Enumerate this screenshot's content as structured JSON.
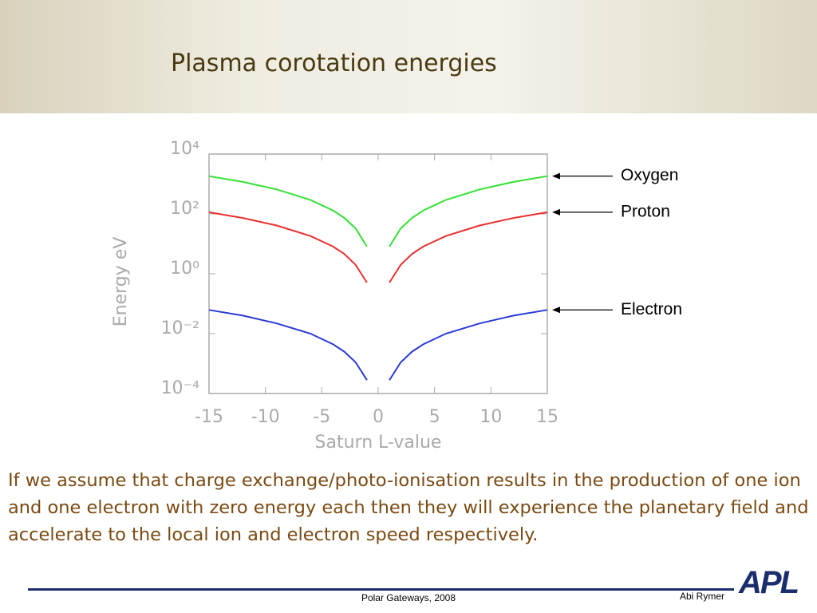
{
  "title": "Plasma corotation energies",
  "chart_data": {
    "type": "line",
    "x": [
      -15,
      -12,
      -9,
      -6,
      -4,
      -3,
      -2,
      -1,
      0,
      1,
      2,
      3,
      4,
      6,
      9,
      12,
      15
    ],
    "series": [
      {
        "name": "Oxygen",
        "color": "#33e033",
        "values": [
          1830,
          1170,
          659,
          293,
          130,
          73,
          33,
          8.1,
          null,
          8.1,
          33,
          73,
          130,
          293,
          659,
          1170,
          1830
        ]
      },
      {
        "name": "Proton",
        "color": "#ea3030",
        "values": [
          114,
          73,
          41,
          18.3,
          8.1,
          4.6,
          2.0,
          0.51,
          null,
          0.51,
          2.0,
          4.6,
          8.1,
          18.3,
          41,
          73,
          114
        ]
      },
      {
        "name": "Electron",
        "color": "#2a3ad8",
        "values": [
          0.062,
          0.04,
          0.022,
          0.01,
          0.0044,
          0.0025,
          0.0011,
          0.00028,
          null,
          0.00028,
          0.0011,
          0.0025,
          0.0044,
          0.01,
          0.022,
          0.04,
          0.062
        ]
      }
    ],
    "xlabel": "Saturn L-value",
    "ylabel": "Energy eV",
    "xlim": [
      -15,
      15
    ],
    "xticks": [
      -15,
      -10,
      -5,
      0,
      5,
      10,
      15
    ],
    "ylim": [
      0.0001,
      10000
    ],
    "yscale": "log",
    "yticks": [
      {
        "value": 0.0001,
        "label": "10⁻⁴"
      },
      {
        "value": 0.01,
        "label": "10⁻²"
      },
      {
        "value": 1,
        "label": "10⁰"
      },
      {
        "value": 100,
        "label": "10²"
      },
      {
        "value": 10000,
        "label": "10⁴"
      }
    ]
  },
  "body": "If we assume that charge exchange/photo-ionisation results in the production of one ion and one electron with zero energy each then they will experience the planetary field and accelerate to the local ion and electron speed respectively.",
  "footer": {
    "event": "Polar Gateways, 2008",
    "author": "Abi Rymer",
    "logo": "APL"
  }
}
